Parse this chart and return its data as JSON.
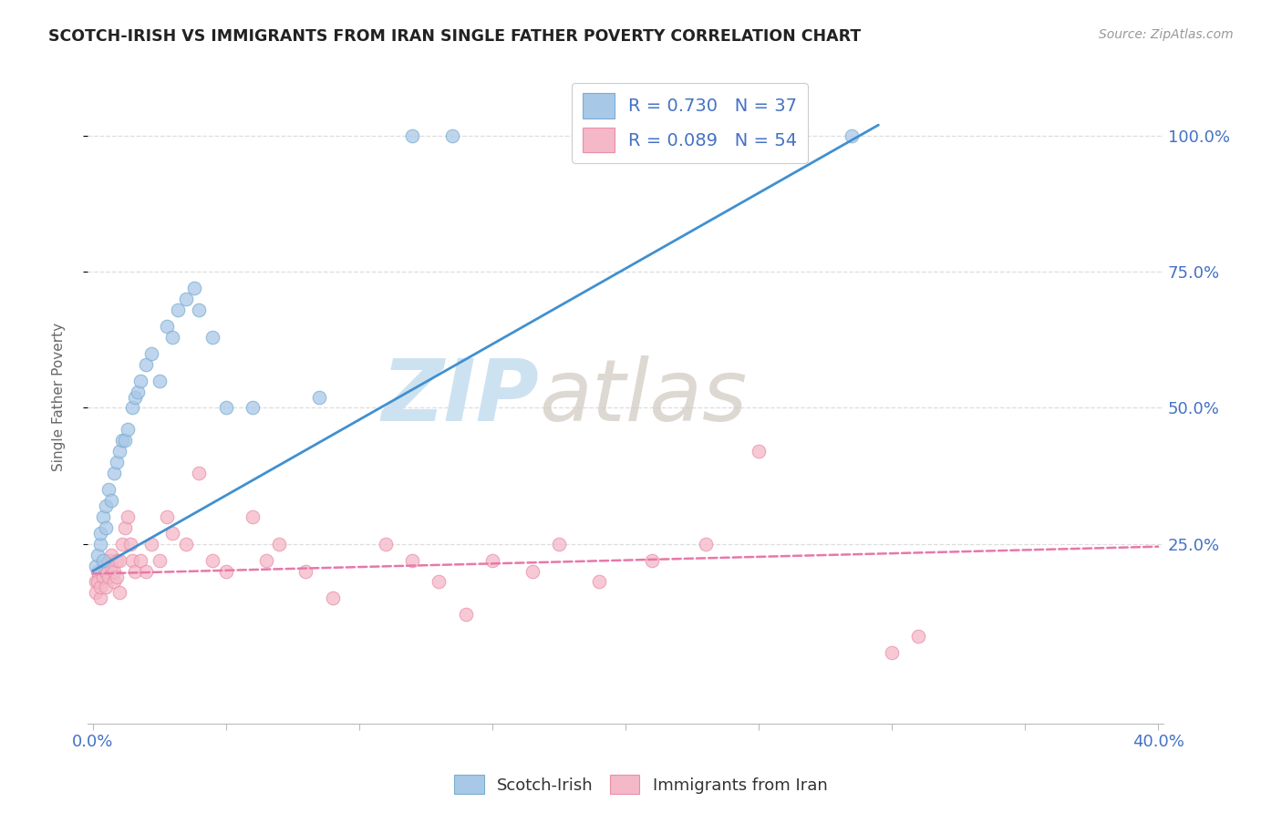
{
  "title": "SCOTCH-IRISH VS IMMIGRANTS FROM IRAN SINGLE FATHER POVERTY CORRELATION CHART",
  "source": "Source: ZipAtlas.com",
  "ylabel": "Single Father Poverty",
  "ytick_labels": [
    "100.0%",
    "75.0%",
    "50.0%",
    "25.0%"
  ],
  "ytick_values": [
    1.0,
    0.75,
    0.5,
    0.25
  ],
  "legend_blue": "R = 0.730   N = 37",
  "legend_pink": "R = 0.089   N = 54",
  "legend_label_blue": "Scotch-Irish",
  "legend_label_pink": "Immigrants from Iran",
  "blue_color": "#a8c8e8",
  "pink_color": "#f4b8c8",
  "blue_edge_color": "#7aaed0",
  "pink_edge_color": "#e890a8",
  "blue_line_color": "#4090d0",
  "pink_line_color": "#e878a8",
  "watermark_color": "#c8dff0",
  "blue_scatter_x": [
    0.001,
    0.002,
    0.003,
    0.003,
    0.004,
    0.004,
    0.005,
    0.005,
    0.006,
    0.007,
    0.008,
    0.009,
    0.01,
    0.011,
    0.012,
    0.013,
    0.015,
    0.016,
    0.017,
    0.018,
    0.02,
    0.022,
    0.025,
    0.028,
    0.03,
    0.032,
    0.035,
    0.038,
    0.04,
    0.045,
    0.05,
    0.06,
    0.085,
    0.12,
    0.135,
    0.23,
    0.285
  ],
  "blue_scatter_y": [
    0.21,
    0.23,
    0.25,
    0.27,
    0.22,
    0.3,
    0.28,
    0.32,
    0.35,
    0.33,
    0.38,
    0.4,
    0.42,
    0.44,
    0.44,
    0.46,
    0.5,
    0.52,
    0.53,
    0.55,
    0.58,
    0.6,
    0.55,
    0.65,
    0.63,
    0.68,
    0.7,
    0.72,
    0.68,
    0.63,
    0.5,
    0.5,
    0.52,
    1.0,
    1.0,
    1.0,
    1.0
  ],
  "pink_scatter_x": [
    0.001,
    0.001,
    0.002,
    0.002,
    0.003,
    0.003,
    0.004,
    0.004,
    0.005,
    0.005,
    0.006,
    0.006,
    0.007,
    0.007,
    0.008,
    0.008,
    0.009,
    0.009,
    0.01,
    0.01,
    0.011,
    0.012,
    0.013,
    0.014,
    0.015,
    0.016,
    0.018,
    0.02,
    0.022,
    0.025,
    0.028,
    0.03,
    0.035,
    0.04,
    0.045,
    0.05,
    0.06,
    0.065,
    0.07,
    0.08,
    0.09,
    0.11,
    0.12,
    0.13,
    0.14,
    0.15,
    0.165,
    0.175,
    0.19,
    0.21,
    0.23,
    0.25,
    0.3,
    0.31
  ],
  "pink_scatter_y": [
    0.18,
    0.16,
    0.2,
    0.18,
    0.15,
    0.17,
    0.19,
    0.21,
    0.17,
    0.2,
    0.22,
    0.19,
    0.21,
    0.23,
    0.18,
    0.2,
    0.22,
    0.19,
    0.16,
    0.22,
    0.25,
    0.28,
    0.3,
    0.25,
    0.22,
    0.2,
    0.22,
    0.2,
    0.25,
    0.22,
    0.3,
    0.27,
    0.25,
    0.38,
    0.22,
    0.2,
    0.3,
    0.22,
    0.25,
    0.2,
    0.15,
    0.25,
    0.22,
    0.18,
    0.12,
    0.22,
    0.2,
    0.25,
    0.18,
    0.22,
    0.25,
    0.42,
    0.05,
    0.08
  ],
  "blue_line_x": [
    0.0,
    0.295
  ],
  "blue_line_y": [
    0.2,
    1.02
  ],
  "pink_line_x": [
    0.0,
    0.4
  ],
  "pink_line_y": [
    0.195,
    0.245
  ],
  "xlim": [
    -0.002,
    0.402
  ],
  "ylim": [
    -0.08,
    1.12
  ],
  "x_percent_ticks": [
    0.0,
    0.05,
    0.1,
    0.15,
    0.2,
    0.25,
    0.3,
    0.35,
    0.4
  ],
  "background_color": "#ffffff",
  "grid_color": "#dddddd"
}
